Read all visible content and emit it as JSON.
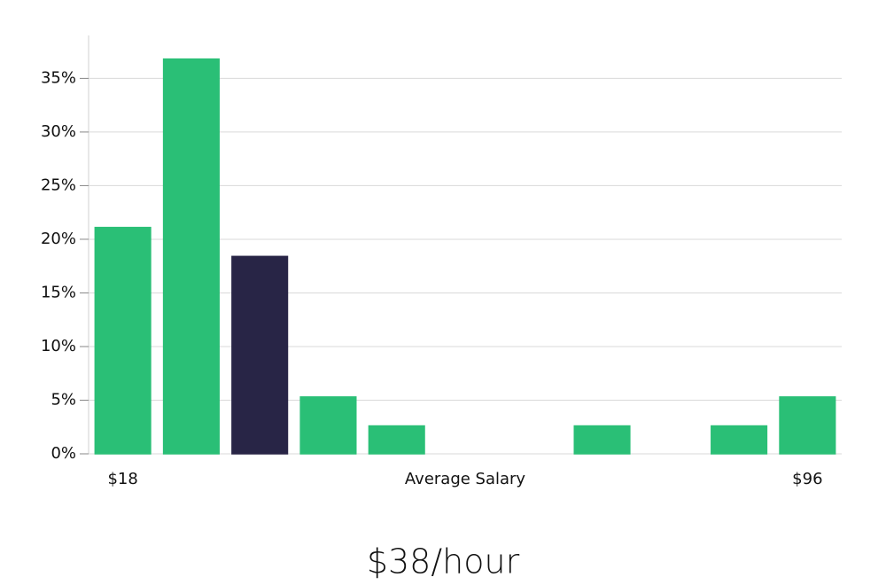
{
  "chart_data": {
    "type": "bar",
    "x_label": "Average Salary",
    "annotation": "$38/hour",
    "categories": [
      "$18",
      null,
      null,
      null,
      null,
      null,
      null,
      null,
      null,
      null,
      "$96"
    ],
    "values": [
      21.1,
      36.8,
      18.4,
      5.3,
      2.6,
      0,
      0,
      2.6,
      0,
      2.6,
      5.3
    ],
    "colors": [
      "#2abf76",
      "#2abf76",
      "#282546",
      "#2abf76",
      "#2abf76",
      "#2abf76",
      "#2abf76",
      "#2abf76",
      "#2abf76",
      "#2abf76",
      "#2abf76"
    ],
    "ylim": [
      0,
      39
    ],
    "yticks": [
      {
        "value": 0,
        "label": "0%"
      },
      {
        "value": 5,
        "label": "5%"
      },
      {
        "value": 10,
        "label": "10%"
      },
      {
        "value": 15,
        "label": "15%"
      },
      {
        "value": 20,
        "label": "20%"
      },
      {
        "value": 25,
        "label": "25%"
      },
      {
        "value": 30,
        "label": "30%"
      },
      {
        "value": 35,
        "label": "35%"
      }
    ],
    "grid": true
  }
}
